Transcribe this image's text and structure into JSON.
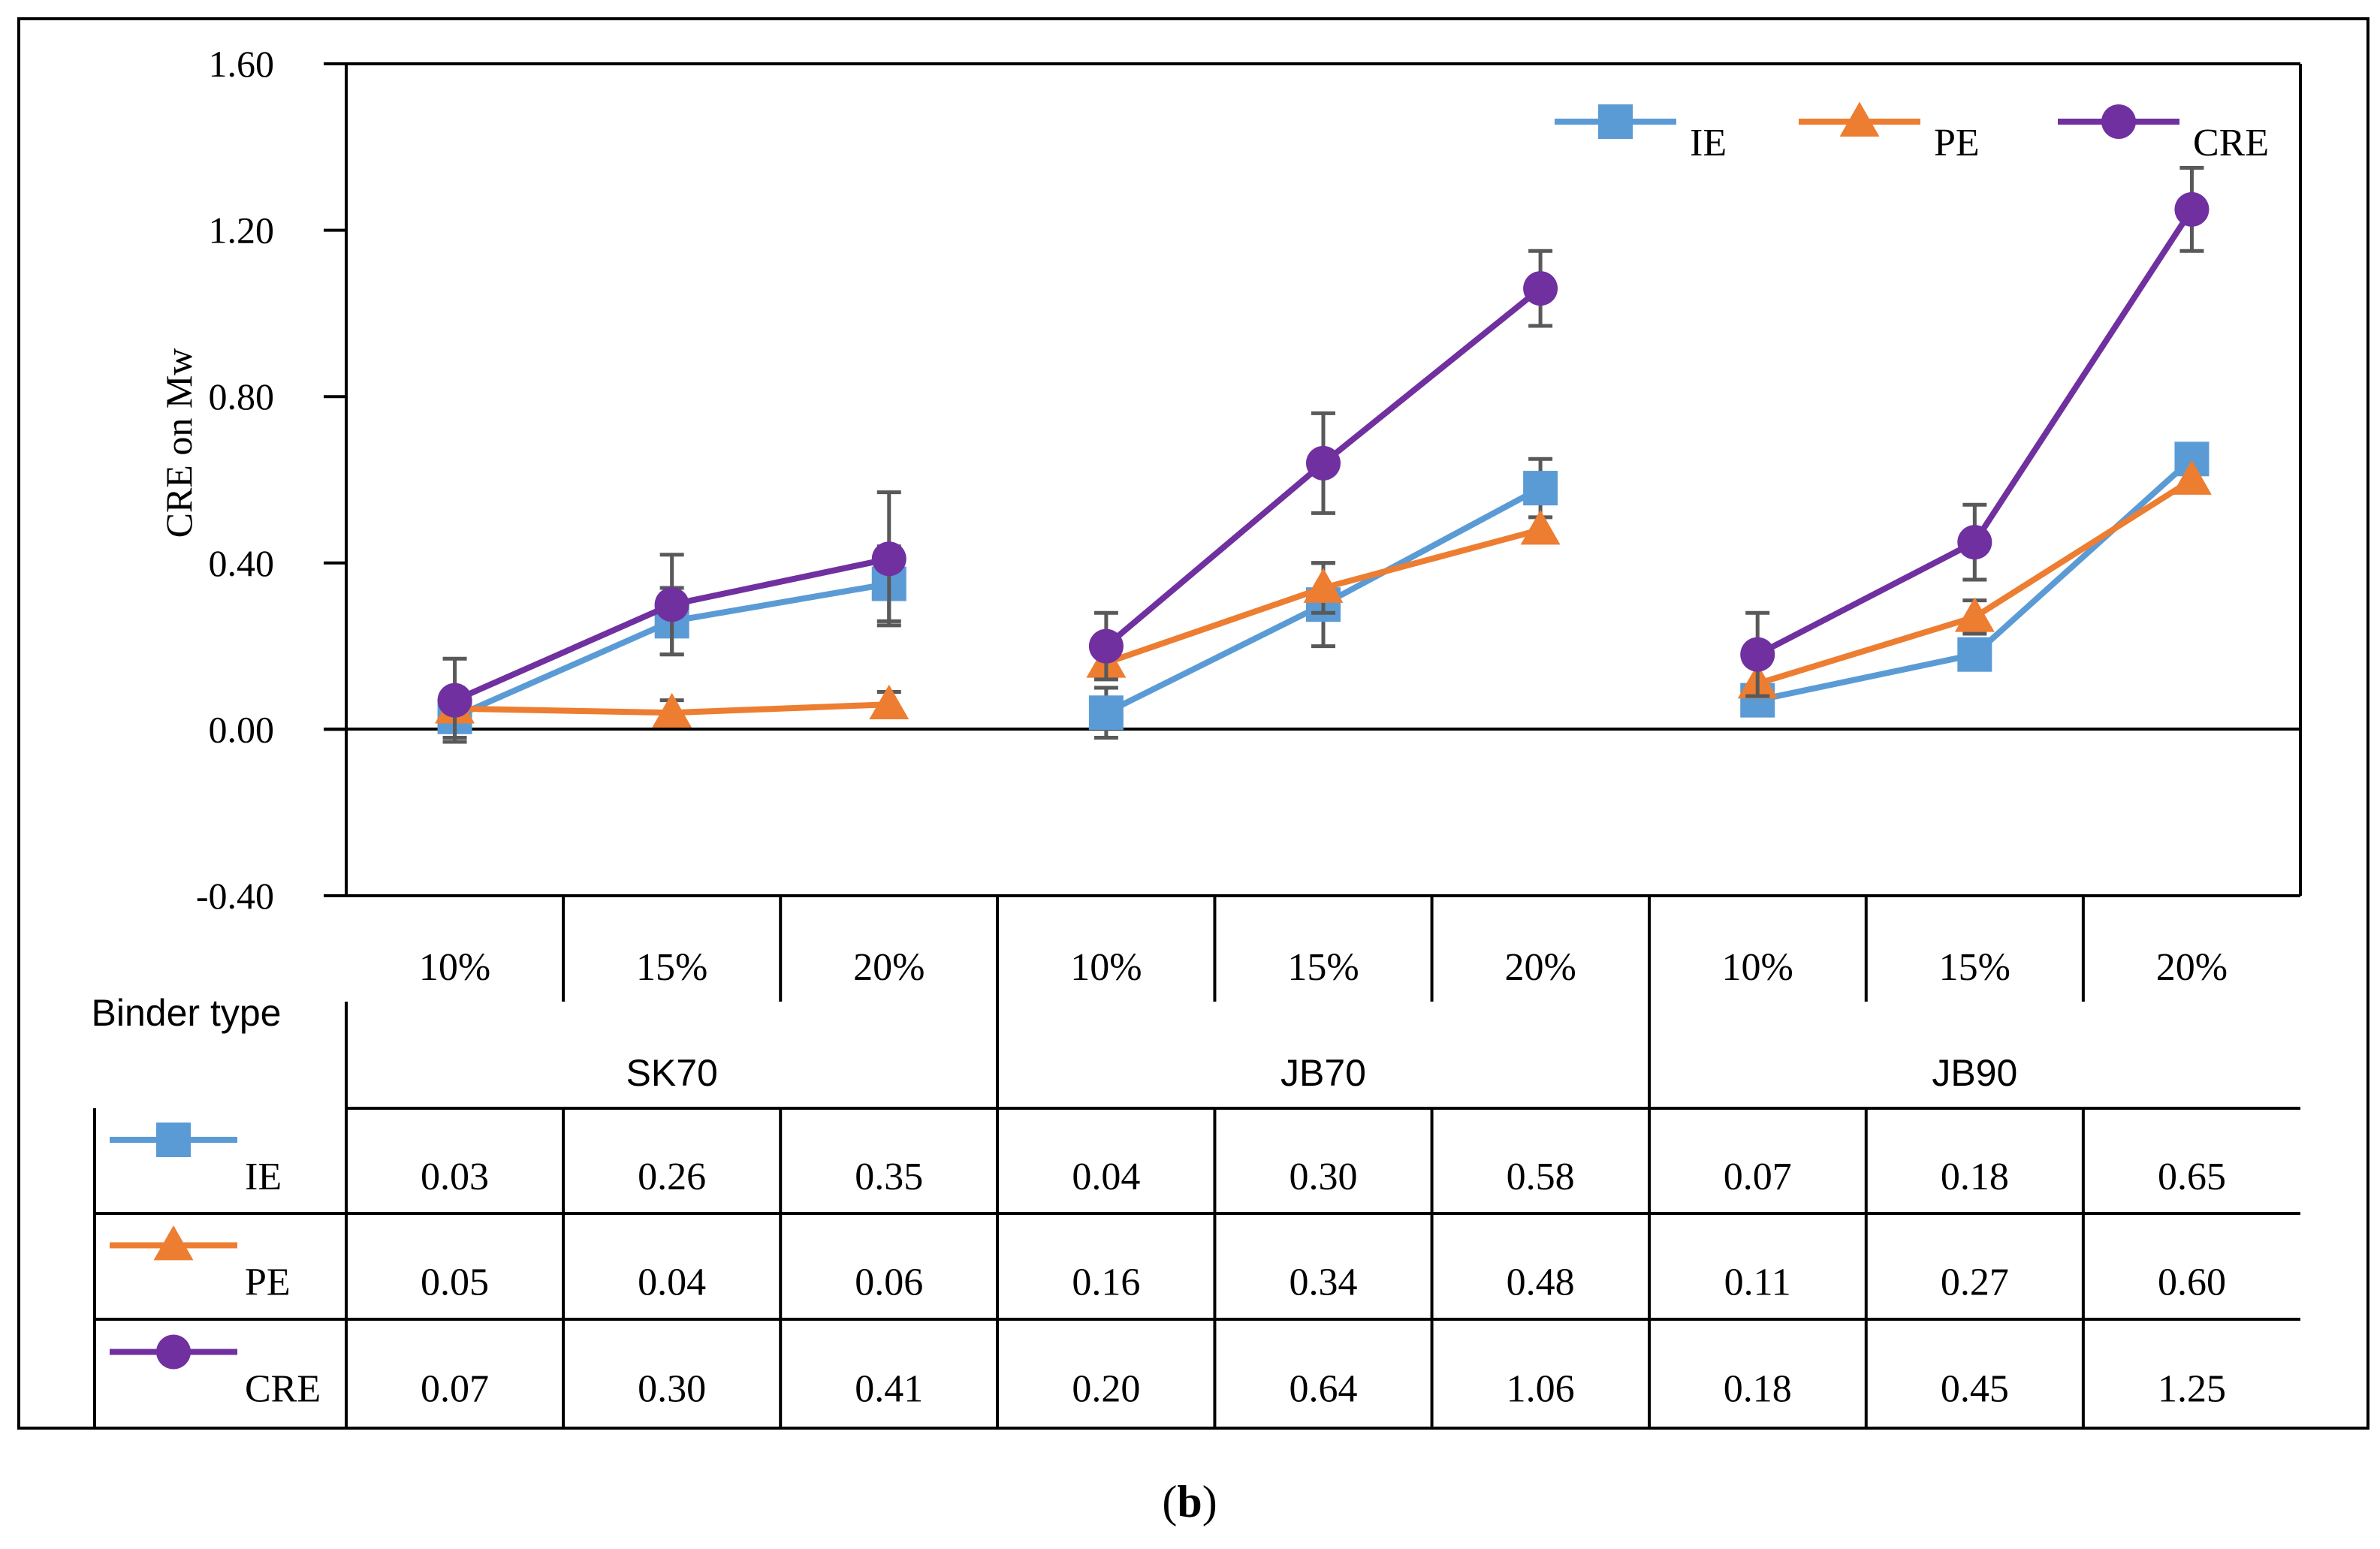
{
  "figure_label": {
    "paren_open": "(",
    "letter": "b",
    "paren_close": ")"
  },
  "chart_data": {
    "type": "line",
    "title": "",
    "ylabel": "CRE on Mw",
    "xlabel": "Binder type",
    "ylim": [
      -0.4,
      1.6
    ],
    "y_ticks": [
      -0.4,
      0.0,
      0.4,
      0.8,
      1.2,
      1.6
    ],
    "y_tick_labels": [
      "-0.40",
      "0.00",
      "0.40",
      "0.80",
      "1.20",
      "1.60"
    ],
    "grid": false,
    "legend_position": "top-right",
    "groups": [
      "SK70",
      "JB70",
      "JB90"
    ],
    "categories": [
      "10%",
      "15%",
      "20%",
      "10%",
      "15%",
      "20%",
      "10%",
      "15%",
      "20%"
    ],
    "series": [
      {
        "name": "IE",
        "color": "#5b9bd5",
        "marker": "square",
        "values": [
          0.03,
          0.26,
          0.35,
          0.04,
          0.3,
          0.58,
          0.07,
          0.18,
          0.65
        ],
        "value_labels": [
          "0.03",
          "0.26",
          "0.35",
          "0.04",
          "0.30",
          "0.58",
          "0.07",
          "0.18",
          "0.65"
        ],
        "errors": [
          0.05,
          0.08,
          0.09,
          0.06,
          0.1,
          0.07,
          0.0,
          0.0,
          0.0
        ]
      },
      {
        "name": "PE",
        "color": "#ed7d31",
        "marker": "triangle",
        "values": [
          0.05,
          0.04,
          0.06,
          0.16,
          0.34,
          0.48,
          0.11,
          0.27,
          0.6
        ],
        "value_labels": [
          "0.05",
          "0.04",
          "0.06",
          "0.16",
          "0.34",
          "0.48",
          "0.11",
          "0.27",
          "0.60"
        ],
        "errors": [
          0.0,
          0.03,
          0.03,
          0.0,
          0.06,
          0.0,
          0.0,
          0.04,
          0.0
        ]
      },
      {
        "name": "CRE",
        "color": "#7030a0",
        "marker": "circle",
        "values": [
          0.07,
          0.3,
          0.41,
          0.2,
          0.64,
          1.06,
          0.18,
          0.45,
          1.25
        ],
        "value_labels": [
          "0.07",
          "0.30",
          "0.41",
          "0.20",
          "0.64",
          "1.06",
          "0.18",
          "0.45",
          "1.25"
        ],
        "errors": [
          0.1,
          0.12,
          0.16,
          0.08,
          0.12,
          0.09,
          0.1,
          0.09,
          0.1
        ]
      }
    ]
  }
}
